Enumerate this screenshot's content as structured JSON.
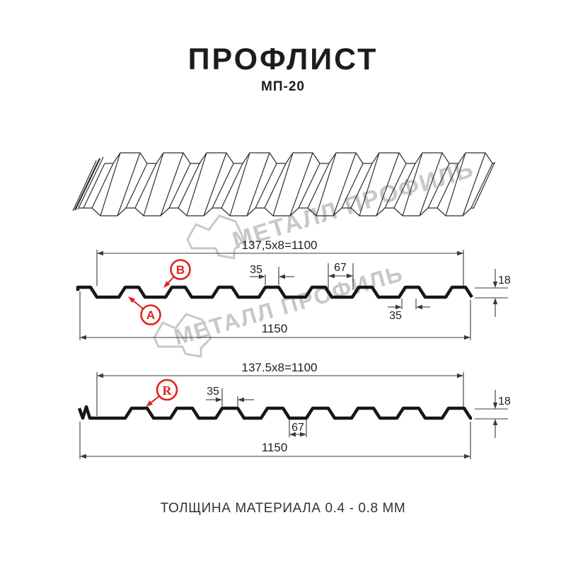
{
  "title": "ПРОФЛИСТ",
  "subtitle": "МП-20",
  "footer": "ТОЛЩИНА МАТЕРИАЛА 0.4 - 0.8 ММ",
  "watermark": {
    "text": "МЕТАЛЛ ПРОФИЛЬ"
  },
  "colors": {
    "accent_red": "#E2231A",
    "line": "#1A1A1A",
    "watermark_gray": "#C8C8C8"
  },
  "section_top": {
    "width_label": "137,5x8=1100",
    "total_width_label": "1150",
    "rib_top_label": "35",
    "valley_label": "67",
    "rib_bottom_label": "35",
    "height_label": "18",
    "marker_a": "A",
    "marker_b": "B"
  },
  "section_bottom": {
    "width_label": "137.5x8=1100",
    "total_width_label": "1150",
    "rib_top_label": "35",
    "valley_label": "67",
    "height_label": "18",
    "marker_r": "R"
  }
}
